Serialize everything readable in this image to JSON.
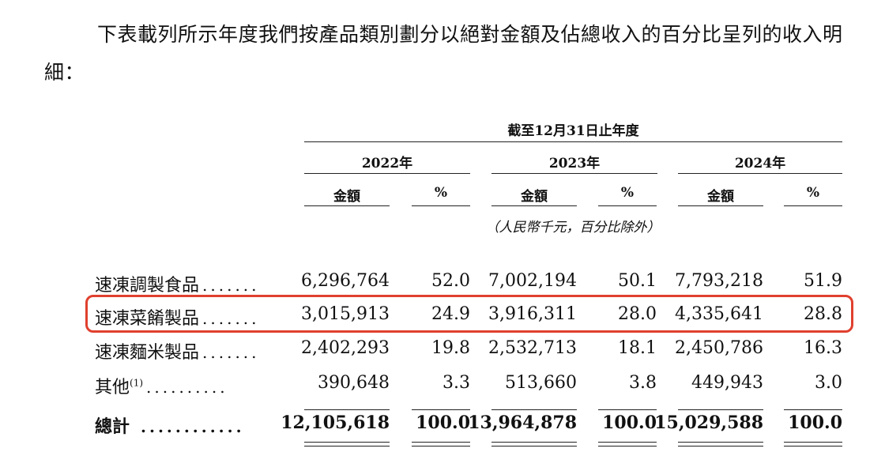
{
  "intro": "下表載列所示年度我們按產品類別劃分以絕對金額及佔總收入的百分比呈列的收入明細：",
  "header": {
    "period": "截至12月31日止年度",
    "years": [
      "2022年",
      "2023年",
      "2024年"
    ],
    "amount_label": "金額",
    "pct_label": "%",
    "unit_note": "（人民幣千元，百分比除外）"
  },
  "rows": [
    {
      "label": "速凍調製食品",
      "dots": ".......",
      "values": [
        "6,296,764",
        "52.0",
        "7,002,194",
        "50.1",
        "7,793,218",
        "51.9"
      ]
    },
    {
      "label": "速凍菜餚製品",
      "dots": ".......",
      "values": [
        "3,015,913",
        "24.9",
        "3,916,311",
        "28.0",
        "4,335,641",
        "28.8"
      ]
    },
    {
      "label": "速凍麵米製品",
      "dots": ".......",
      "values": [
        "2,402,293",
        "19.8",
        "2,532,713",
        "18.1",
        "2,450,786",
        "16.3"
      ]
    },
    {
      "label": "其他",
      "note": "(1)",
      "dots": "..........",
      "values": [
        "390,648",
        "3.3",
        "513,660",
        "3.8",
        "449,943",
        "3.0"
      ]
    }
  ],
  "total": {
    "label": "總計",
    "dots": "............",
    "values": [
      "12,105,618",
      "100.0",
      "13,964,878",
      "100.0",
      "15,029,588",
      "100.0"
    ]
  },
  "highlight_color": "#e0402e"
}
